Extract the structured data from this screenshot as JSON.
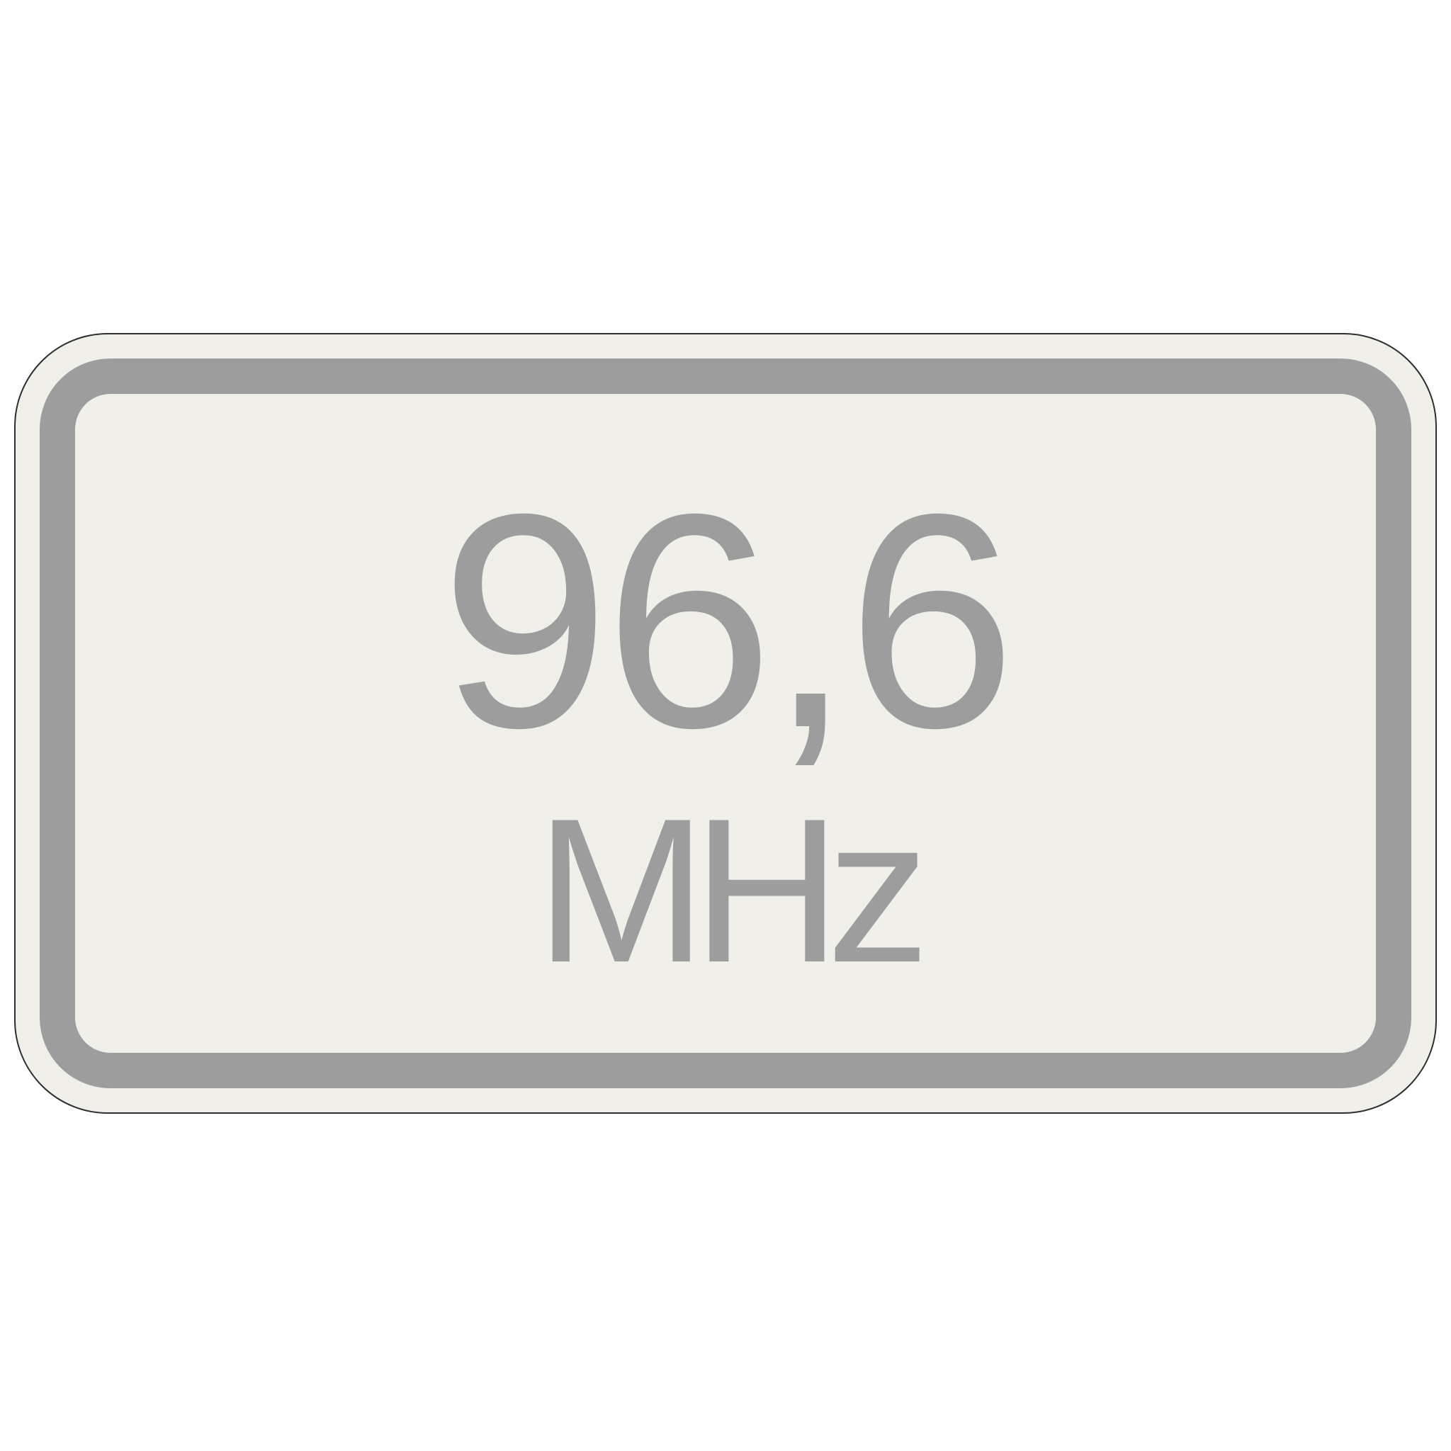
{
  "sign": {
    "frequency": "96,6",
    "unit": "MHz"
  },
  "colors": {
    "background": "#ffffff",
    "panel": "#f0efea",
    "outline": "#2e2e2e",
    "frame_and_text": "#9d9d9d"
  }
}
